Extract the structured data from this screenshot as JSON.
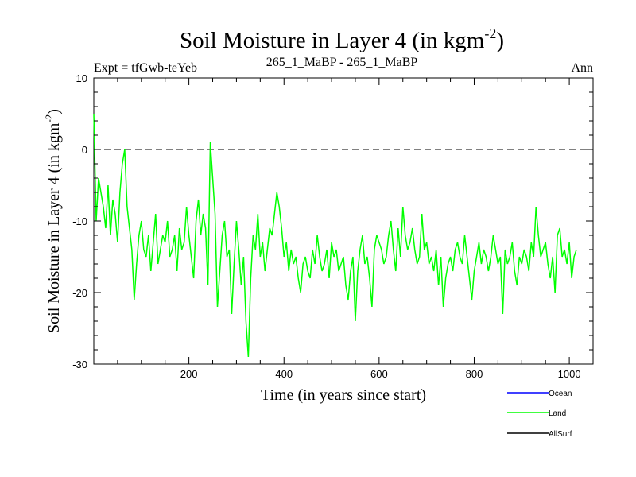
{
  "chart_data": {
    "type": "line",
    "title_main": "Soil Moisture in Layer 4 (in kgm",
    "title_sup": "-2",
    "title_close": ")",
    "subtitle_left": "Expt = tfGwb-teYeb",
    "subtitle_center": "265_1_MaBP - 265_1_MaBP",
    "subtitle_right": "Ann",
    "xlabel": "Time (in years since start)",
    "ylabel_main": "Soil Moisture in Layer 4 (in kgm",
    "ylabel_sup": "-2",
    "ylabel_close": ")",
    "xlim": [
      0,
      1050
    ],
    "ylim": [
      -30,
      10
    ],
    "x_ticks": [
      200,
      400,
      600,
      800,
      1000
    ],
    "y_ticks": [
      10,
      0,
      -10,
      -20,
      -30
    ],
    "zero_line": 0,
    "legend": [
      {
        "name": "Ocean",
        "color": "#0000ff"
      },
      {
        "name": "Land",
        "color": "#00ff00"
      },
      {
        "name": "AllSurf",
        "color": "#000000"
      }
    ],
    "series": [
      {
        "name": "Land",
        "color": "#00ff00",
        "x_start": 0,
        "x_step": 5,
        "values": [
          5,
          -10,
          -4,
          -6,
          -8,
          -11,
          -5,
          -12,
          -7,
          -9,
          -13,
          -6,
          -2,
          0,
          -8,
          -11,
          -14,
          -21,
          -16,
          -12,
          -10,
          -14,
          -15,
          -12,
          -17,
          -13,
          -9,
          -16,
          -14,
          -12,
          -13,
          -10,
          -15,
          -14,
          -12,
          -17,
          -11,
          -14,
          -13,
          -8,
          -12,
          -15,
          -18,
          -10,
          -7,
          -12,
          -9,
          -11,
          -19,
          1,
          -4,
          -9,
          -22,
          -17,
          -12,
          -10,
          -15,
          -14,
          -23,
          -16,
          -10,
          -14,
          -19,
          -15,
          -24,
          -29,
          -18,
          -12,
          -14,
          -9,
          -15,
          -13,
          -17,
          -14,
          -11,
          -12,
          -9,
          -6,
          -8,
          -11,
          -15,
          -13,
          -17,
          -14,
          -16,
          -15,
          -18,
          -20,
          -16,
          -15,
          -17,
          -18,
          -14,
          -16,
          -12,
          -15,
          -17,
          -16,
          -14,
          -18,
          -13,
          -15,
          -14,
          -17,
          -16,
          -15,
          -19,
          -21,
          -17,
          -15,
          -24,
          -17,
          -14,
          -12,
          -16,
          -15,
          -18,
          -22,
          -14,
          -12,
          -13,
          -14,
          -16,
          -15,
          -12,
          -10,
          -14,
          -17,
          -11,
          -15,
          -8,
          -12,
          -14,
          -13,
          -11,
          -14,
          -16,
          -15,
          -9,
          -14,
          -13,
          -16,
          -15,
          -17,
          -14,
          -19,
          -15,
          -22,
          -18,
          -16,
          -15,
          -17,
          -14,
          -13,
          -15,
          -16,
          -12,
          -15,
          -18,
          -21,
          -17,
          -15,
          -13,
          -16,
          -14,
          -15,
          -17,
          -15,
          -12,
          -14,
          -16,
          -15,
          -23,
          -14,
          -16,
          -15,
          -13,
          -17,
          -19,
          -15,
          -16,
          -14,
          -15,
          -17,
          -13,
          -15,
          -8,
          -12,
          -15,
          -14,
          -13,
          -16,
          -18,
          -15,
          -20,
          -12,
          -11,
          -15,
          -14,
          -16,
          -13,
          -18,
          -15,
          -14
        ]
      }
    ]
  }
}
